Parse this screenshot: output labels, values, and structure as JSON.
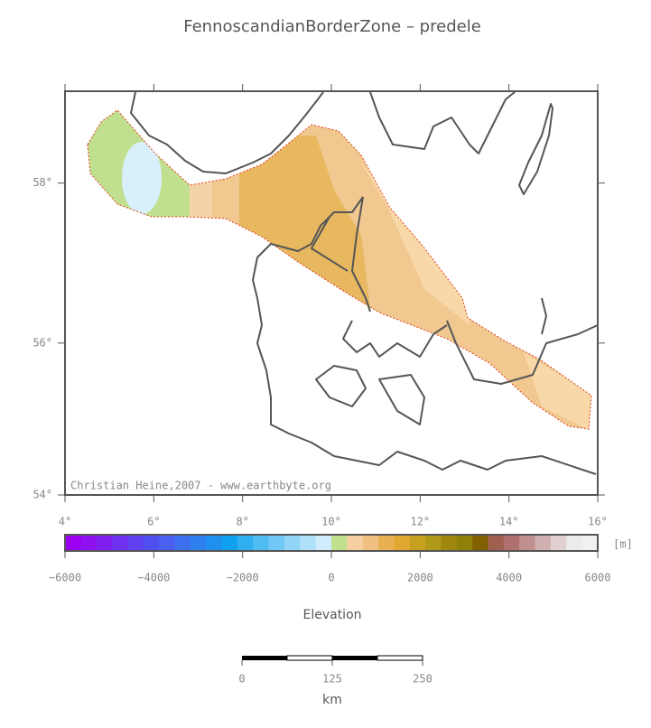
{
  "title": "FennoscandianBorderZone – predele",
  "map": {
    "xlim": [
      4,
      16
    ],
    "ylim": [
      54,
      59.1
    ],
    "xticks": [
      {
        "value": 4,
        "label": "4°"
      },
      {
        "value": 6,
        "label": "6°"
      },
      {
        "value": 8,
        "label": "8°"
      },
      {
        "value": 10,
        "label": "10°"
      },
      {
        "value": 12,
        "label": "12°"
      },
      {
        "value": 14,
        "label": "14°"
      },
      {
        "value": 16,
        "label": "16°"
      }
    ],
    "yticks": [
      {
        "value": 54,
        "label": "54°"
      },
      {
        "value": 56,
        "label": "56°"
      },
      {
        "value": 58,
        "label": "58°"
      }
    ],
    "credit": "Christian Heine,2007 - www.earthbyte.org"
  },
  "colorbar": {
    "label": "Elevation",
    "unit": "[m]",
    "lim": [
      -6000,
      6000
    ],
    "ticks": [
      {
        "value": -6000,
        "label": "−6000"
      },
      {
        "value": -4000,
        "label": "−4000"
      },
      {
        "value": -2000,
        "label": "−2000"
      },
      0,
      2000,
      4000,
      6000
    ],
    "colors": [
      "#9b00f0",
      "#8f10f0",
      "#8020f0",
      "#7030f0",
      "#6040f0",
      "#5050f0",
      "#4a60f0",
      "#3c70f0",
      "#2e80f0",
      "#1f90f0",
      "#10a0f0",
      "#30aef2",
      "#50bcf4",
      "#70c8f6",
      "#90d4f8",
      "#b0e0fa",
      "#d0ecfc",
      "#c0e090",
      "#f5cfa0",
      "#f0c080",
      "#e8b050",
      "#e0a830",
      "#c8a020",
      "#b09818",
      "#a08810",
      "#908008",
      "#806000",
      "#a06050",
      "#b07070",
      "#c09090",
      "#d0b0b0",
      "#e0d0d0",
      "#ececec",
      "#f0f0f0"
    ]
  },
  "scalebar": {
    "unit": "km",
    "ticks": [
      0,
      125,
      250
    ]
  }
}
